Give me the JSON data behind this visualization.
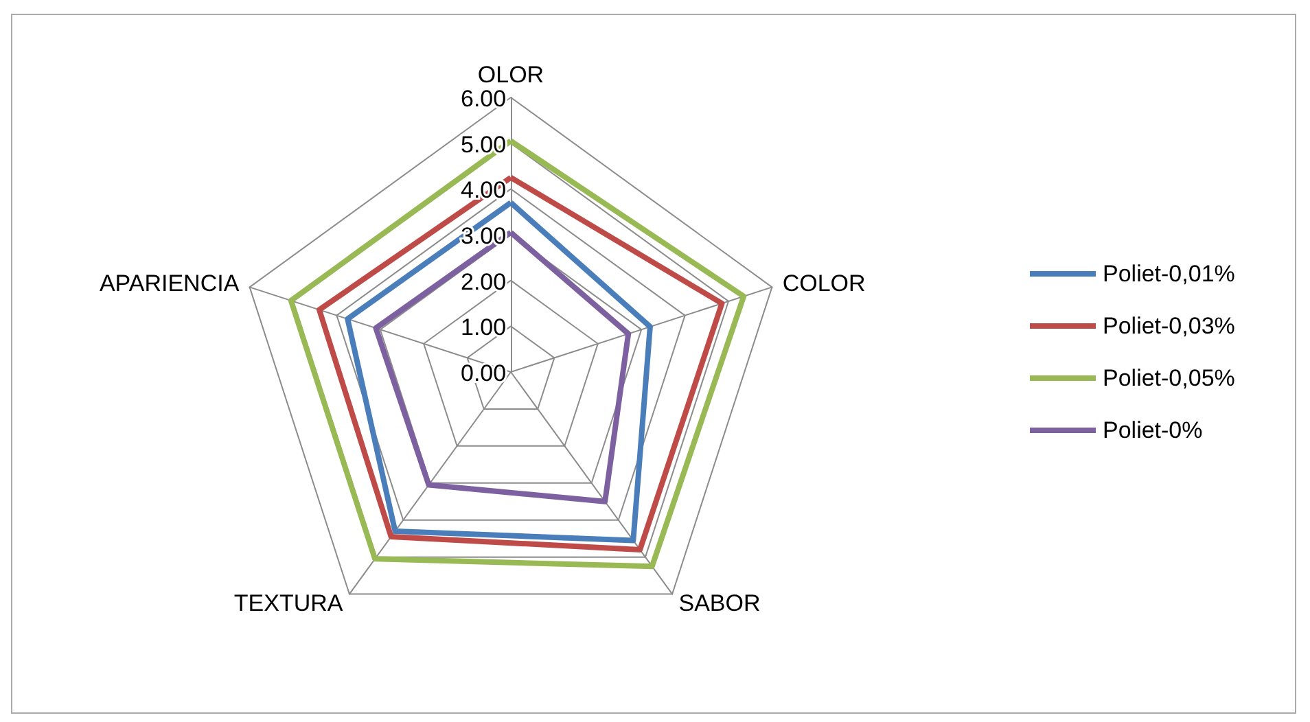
{
  "chart_data": {
    "type": "radar",
    "categories": [
      "OLOR",
      "COLOR",
      "SABOR",
      "TEXTURA",
      "APARIENCIA"
    ],
    "ylim": [
      0,
      6
    ],
    "yticks": [
      {
        "value": 0,
        "label": "0.00"
      },
      {
        "value": 1,
        "label": "1.00"
      },
      {
        "value": 2,
        "label": "2.00"
      },
      {
        "value": 3,
        "label": "3.00"
      },
      {
        "value": 4,
        "label": "4.00"
      },
      {
        "value": 5,
        "label": "5.00"
      },
      {
        "value": 6,
        "label": "6.00"
      }
    ],
    "grid": true,
    "legend": "right",
    "marker": "none",
    "series": [
      {
        "name": "Poliet-0,01%",
        "color": "#4a7ebb",
        "values": [
          3.7,
          3.2,
          4.55,
          4.3,
          3.75
        ]
      },
      {
        "name": "Poliet-0,03%",
        "color": "#be4b48",
        "values": [
          4.25,
          4.85,
          4.8,
          4.45,
          4.4
        ]
      },
      {
        "name": "Poliet-0,05%",
        "color": "#98b954",
        "values": [
          5.05,
          5.35,
          5.25,
          5.05,
          5.05
        ]
      },
      {
        "name": "Poliet-0%",
        "color": "#7d60a0",
        "values": [
          3.05,
          2.7,
          3.5,
          3.05,
          3.1
        ]
      }
    ]
  }
}
